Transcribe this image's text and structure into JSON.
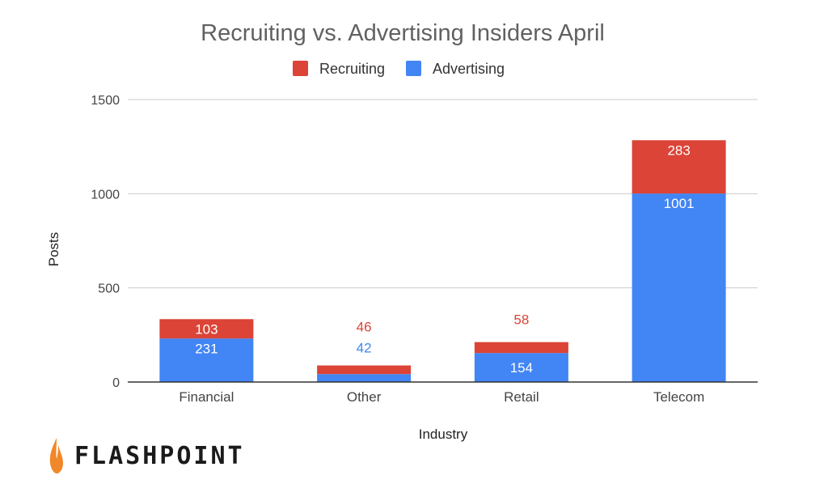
{
  "chart_data": {
    "type": "bar",
    "stacked": true,
    "title": "Recruiting vs. Advertising Insiders April",
    "xlabel": "Industry",
    "ylabel": "Posts",
    "categories": [
      "Financial",
      "Other",
      "Retail",
      "Telecom"
    ],
    "series": [
      {
        "name": "Advertising",
        "color": "#4285f4",
        "values": [
          231,
          42,
          154,
          1001
        ]
      },
      {
        "name": "Recruiting",
        "color": "#db4437",
        "values": [
          103,
          46,
          58,
          283
        ]
      }
    ],
    "legend_order": [
      "Recruiting",
      "Advertising"
    ],
    "ylim": [
      0,
      1500
    ],
    "yticks": [
      0,
      500,
      1000,
      1500
    ],
    "legend_position": "top",
    "grid": true
  },
  "brand": {
    "name": "FLASHPOINT",
    "flame_color": "#f0872a"
  }
}
